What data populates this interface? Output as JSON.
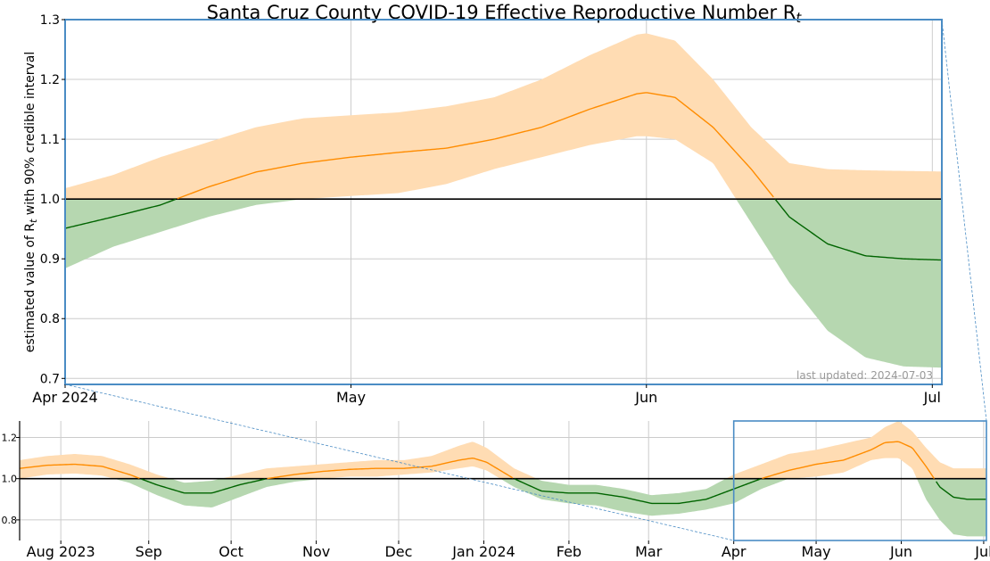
{
  "colors": {
    "above_band": "#ffdcb3",
    "above_line": "#ff8c00",
    "below_band": "#b6d7b0",
    "below_line": "#006400",
    "reference_line": "#000000",
    "zoom_box": "#4a8cc4",
    "grid": "#cccccc",
    "footnote": "#999999"
  },
  "chart_data": [
    {
      "id": "main",
      "type": "area",
      "title": "Santa Cruz County COVID-19 Effective Reproductive Number R",
      "title_subscript": "t",
      "ylabel_prefix": "estimated value of R",
      "ylabel_subscript": "t",
      "ylabel_suffix": " with 90% credible interval",
      "x_ticks": [
        {
          "label": "Apr 2024",
          "day": 0
        },
        {
          "label": "May",
          "day": 30
        },
        {
          "label": "Jun",
          "day": 61
        },
        {
          "label": "Jul",
          "day": 91
        }
      ],
      "y_ticks": [
        "0.7",
        "0.8",
        "0.9",
        "1.0",
        "1.1",
        "1.2",
        "1.3"
      ],
      "xlim_days": [
        0,
        92
      ],
      "ylim": [
        0.69,
        1.3
      ],
      "grid": true,
      "reference_line": 1.0,
      "annotation": "last updated: 2024-07-03",
      "series": {
        "day": [
          0,
          5,
          10,
          15,
          20,
          25,
          30,
          35,
          40,
          45,
          50,
          55,
          60,
          61,
          64,
          68,
          72,
          76,
          80,
          84,
          88,
          92
        ],
        "rt": [
          0.951,
          0.97,
          0.99,
          1.02,
          1.045,
          1.06,
          1.07,
          1.078,
          1.085,
          1.1,
          1.12,
          1.15,
          1.176,
          1.178,
          1.17,
          1.12,
          1.05,
          0.97,
          0.925,
          0.905,
          0.9,
          0.898
        ],
        "lower": [
          0.884,
          0.92,
          0.945,
          0.97,
          0.99,
          1.0,
          1.005,
          1.01,
          1.025,
          1.05,
          1.07,
          1.09,
          1.105,
          1.105,
          1.1,
          1.06,
          0.96,
          0.86,
          0.78,
          0.735,
          0.72,
          0.718
        ],
        "upper": [
          1.018,
          1.04,
          1.07,
          1.095,
          1.12,
          1.135,
          1.14,
          1.145,
          1.155,
          1.17,
          1.2,
          1.24,
          1.275,
          1.277,
          1.265,
          1.2,
          1.12,
          1.06,
          1.05,
          1.048,
          1.047,
          1.046
        ]
      }
    },
    {
      "id": "overview",
      "type": "area",
      "x_ticks": [
        {
          "label": "Aug 2023",
          "day": 15
        },
        {
          "label": "Sep",
          "day": 47
        },
        {
          "label": "Oct",
          "day": 77
        },
        {
          "label": "Nov",
          "day": 108
        },
        {
          "label": "Dec",
          "day": 138
        },
        {
          "label": "Jan 2024",
          "day": 169
        },
        {
          "label": "Feb",
          "day": 200
        },
        {
          "label": "Mar",
          "day": 229
        },
        {
          "label": "Apr",
          "day": 260
        },
        {
          "label": "May",
          "day": 290
        },
        {
          "label": "Jun",
          "day": 321
        },
        {
          "label": "Jul",
          "day": 351
        }
      ],
      "y_ticks": [
        "0.8",
        "1.0",
        "1.2"
      ],
      "xlim_days": [
        0,
        352
      ],
      "ylim": [
        0.7,
        1.28
      ],
      "grid": true,
      "reference_line": 1.0,
      "zoom_window_days": [
        260,
        352
      ],
      "series": {
        "day": [
          0,
          10,
          20,
          30,
          40,
          50,
          60,
          70,
          80,
          90,
          100,
          110,
          120,
          130,
          140,
          150,
          160,
          165,
          170,
          180,
          190,
          200,
          210,
          220,
          230,
          240,
          250,
          260,
          270,
          280,
          290,
          300,
          310,
          315,
          320,
          325,
          330,
          335,
          340,
          345,
          352
        ],
        "rt": [
          1.05,
          1.065,
          1.07,
          1.06,
          1.02,
          0.97,
          0.93,
          0.93,
          0.97,
          1.0,
          1.02,
          1.035,
          1.045,
          1.05,
          1.05,
          1.06,
          1.09,
          1.1,
          1.08,
          1.0,
          0.94,
          0.93,
          0.93,
          0.91,
          0.88,
          0.88,
          0.9,
          0.95,
          1.0,
          1.04,
          1.07,
          1.09,
          1.14,
          1.175,
          1.18,
          1.15,
          1.06,
          0.96,
          0.91,
          0.9,
          0.9
        ],
        "lower": [
          1.0,
          1.02,
          1.025,
          1.015,
          0.98,
          0.92,
          0.87,
          0.86,
          0.91,
          0.96,
          0.985,
          1.0,
          1.01,
          1.01,
          1.02,
          1.03,
          1.05,
          1.06,
          1.04,
          0.96,
          0.9,
          0.88,
          0.87,
          0.84,
          0.82,
          0.83,
          0.85,
          0.88,
          0.95,
          1.0,
          1.01,
          1.03,
          1.09,
          1.1,
          1.1,
          1.05,
          0.9,
          0.8,
          0.73,
          0.72,
          0.72
        ],
        "upper": [
          1.09,
          1.11,
          1.12,
          1.11,
          1.07,
          1.02,
          0.98,
          0.99,
          1.02,
          1.05,
          1.06,
          1.07,
          1.08,
          1.09,
          1.09,
          1.11,
          1.16,
          1.18,
          1.15,
          1.05,
          0.99,
          0.97,
          0.97,
          0.95,
          0.92,
          0.93,
          0.95,
          1.02,
          1.07,
          1.12,
          1.14,
          1.17,
          1.2,
          1.25,
          1.28,
          1.23,
          1.15,
          1.08,
          1.05,
          1.05,
          1.05
        ]
      }
    }
  ]
}
